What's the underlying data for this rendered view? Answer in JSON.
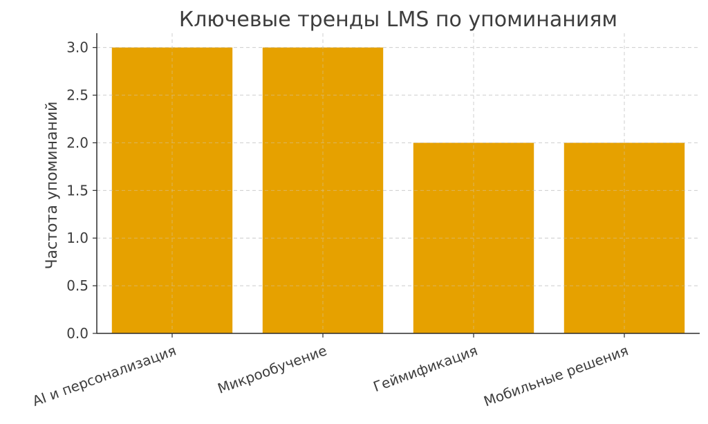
{
  "chart_data": {
    "type": "bar",
    "title": "Ключевые тренды LMS по упоминаниям",
    "xlabel": "",
    "ylabel": "Частота упоминаний",
    "categories": [
      "AI и персонализация",
      "Микрообучение",
      "Геймификация",
      "Мобильные решения"
    ],
    "values": [
      3,
      3,
      2,
      2
    ],
    "ylim": [
      0,
      3.15
    ],
    "yticks": [
      0.0,
      0.5,
      1.0,
      1.5,
      2.0,
      2.5,
      3.0
    ],
    "ytick_labels": [
      "0.0",
      "0.5",
      "1.0",
      "1.5",
      "2.0",
      "2.5",
      "3.0"
    ],
    "bar_color": "#e6a100",
    "grid": true,
    "legend": "none"
  }
}
